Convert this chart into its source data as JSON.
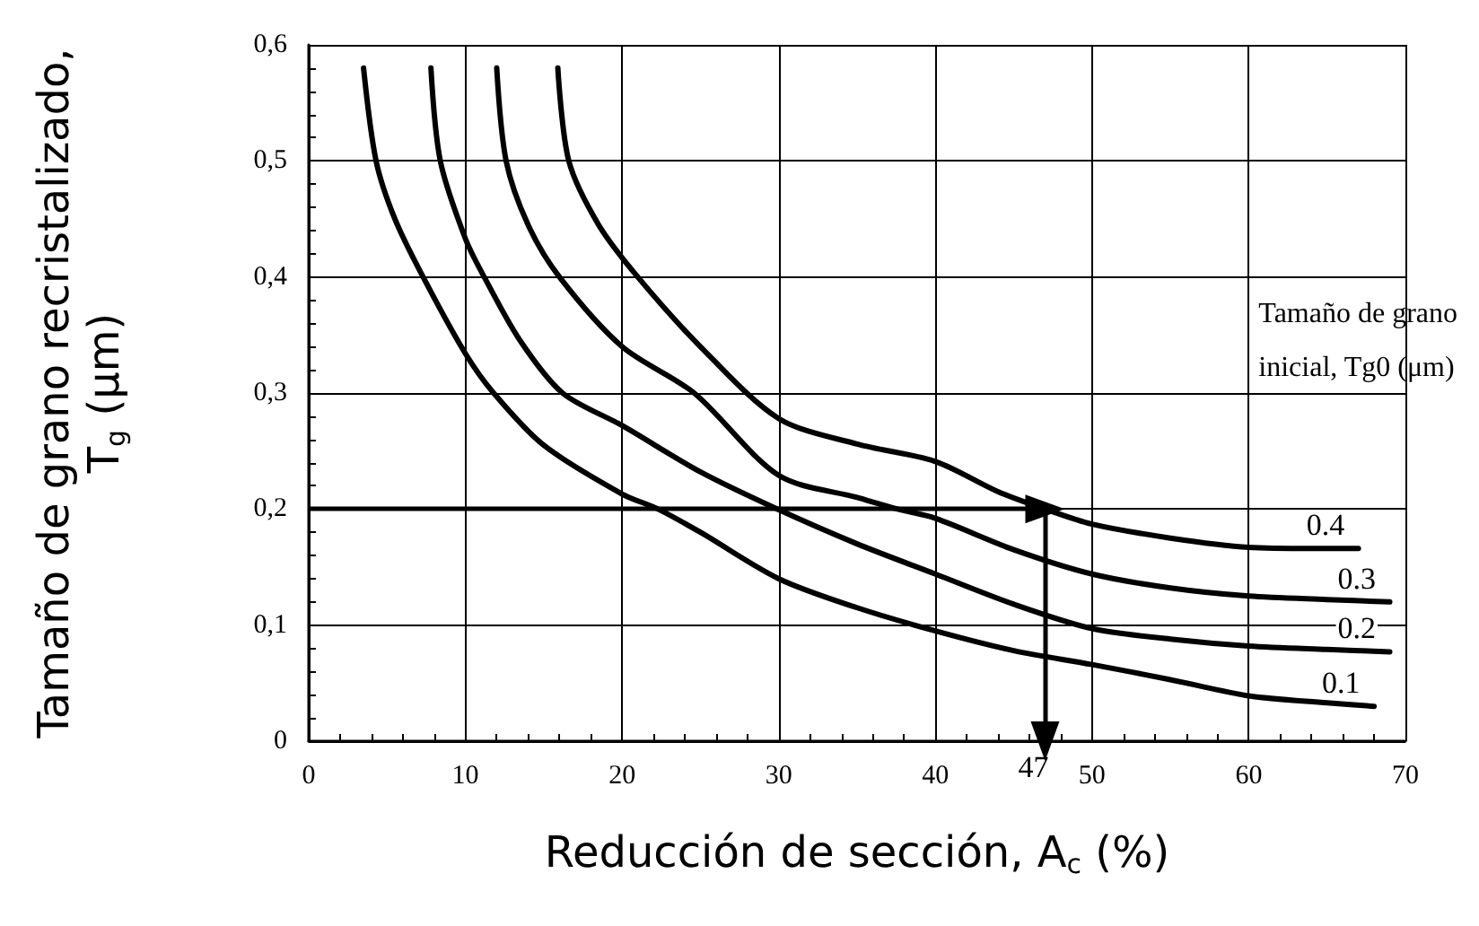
{
  "chart_data": {
    "type": "line",
    "xlabel": "Reducción de sección, A$_{c}$ (%)",
    "ylabel": "Tamaño de grano recristalizado,\nT$_{g}$ (μm)",
    "legend_title": "Tamaño de grano\ninicial, Tg0 (μm)",
    "annotations": [
      {
        "text": "47",
        "x": 47,
        "y": 0
      }
    ],
    "ref_lines": [
      {
        "axis": "y",
        "value": 0.2,
        "color": "#000000"
      },
      {
        "axis": "x",
        "value": 47,
        "color": "#000000"
      }
    ],
    "series": [
      {
        "name": "0.1",
        "color": "#000000",
        "x": [
          3.5,
          4.3,
          5.5,
          7.3,
          10,
          11.8,
          15,
          20,
          22.3,
          25,
          30,
          35,
          40,
          45,
          50,
          55,
          60,
          65,
          68
        ],
        "values": [
          0.58,
          0.5,
          0.45,
          0.4,
          0.334,
          0.3,
          0.255,
          0.213,
          0.2,
          0.18,
          0.14,
          0.115,
          0.095,
          0.078,
          0.066,
          0.053,
          0.039,
          0.033,
          0.03
        ]
      },
      {
        "name": "0.2",
        "color": "#000000",
        "x": [
          7.8,
          8.4,
          10,
          11.2,
          13.5,
          16.2,
          20,
          25,
          29.9,
          35,
          40,
          45,
          50,
          55,
          60,
          65,
          69
        ],
        "values": [
          0.58,
          0.5,
          0.433,
          0.4,
          0.345,
          0.3,
          0.272,
          0.232,
          0.2,
          0.17,
          0.144,
          0.118,
          0.097,
          0.088,
          0.082,
          0.079,
          0.077
        ]
      },
      {
        "name": "0.3",
        "color": "#000000",
        "x": [
          12,
          12.6,
          14,
          16,
          20,
          24.6,
          30,
          35,
          37.6,
          40,
          45,
          50,
          55,
          60,
          65,
          69
        ],
        "values": [
          0.58,
          0.5,
          0.445,
          0.4,
          0.34,
          0.3,
          0.229,
          0.21,
          0.2,
          0.192,
          0.165,
          0.144,
          0.132,
          0.125,
          0.122,
          0.12
        ]
      },
      {
        "name": "0.4",
        "color": "#000000",
        "x": [
          15.9,
          16.6,
          18.5,
          21,
          25,
          30,
          35,
          40,
          44,
          47,
          50,
          55,
          60,
          64,
          67
        ],
        "values": [
          0.58,
          0.5,
          0.445,
          0.4,
          0.34,
          0.278,
          0.256,
          0.241,
          0.215,
          0.2,
          0.187,
          0.175,
          0.167,
          0.166,
          0.166
        ]
      }
    ],
    "xlim": [
      0,
      70
    ],
    "xticks": [
      0,
      10,
      20,
      30,
      40,
      50,
      60,
      70
    ],
    "ylim": [
      0,
      0.6
    ],
    "yticks": [
      {
        "value": 0,
        "label": "0"
      },
      {
        "value": 0.1,
        "label": "0,1"
      },
      {
        "value": 0.2,
        "label": "0,2"
      },
      {
        "value": 0.3,
        "label": "0,3"
      },
      {
        "value": 0.4,
        "label": "0,4"
      },
      {
        "value": 0.5,
        "label": "0,5"
      },
      {
        "value": 0.6,
        "label": "0,6"
      }
    ],
    "grid": true,
    "legend": false,
    "marker": "none",
    "line_style": "solid"
  }
}
